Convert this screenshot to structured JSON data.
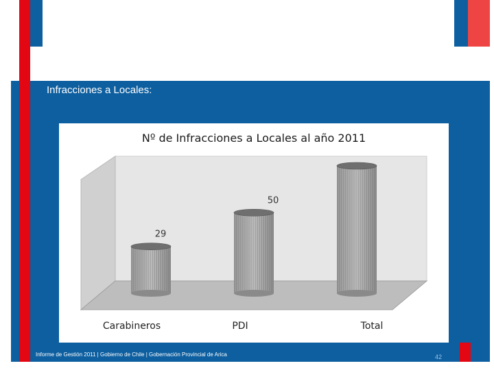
{
  "slide": {
    "heading": "Infracciones a Locales:",
    "footer": "Informe de Gestión 2011 | Gobierno de Chile | Gobernación Provincial de Arica",
    "page_number": "42"
  },
  "colors": {
    "slide_blue": "#0d5fa0",
    "accent_red": "#e30613",
    "bar_gray": "#a8a8a8",
    "wall_gray": "#d4d4d4"
  },
  "chart_data": {
    "type": "bar",
    "title": "Nº de Infracciones a Locales al año 2011",
    "categories": [
      "Carabineros",
      "PDI",
      "Total"
    ],
    "values": [
      29,
      50,
      79
    ],
    "data_labels": [
      "29",
      "50",
      ""
    ],
    "ylim": [
      0,
      79
    ],
    "grid": false,
    "legend": "none",
    "style": "3d-cylinder"
  }
}
